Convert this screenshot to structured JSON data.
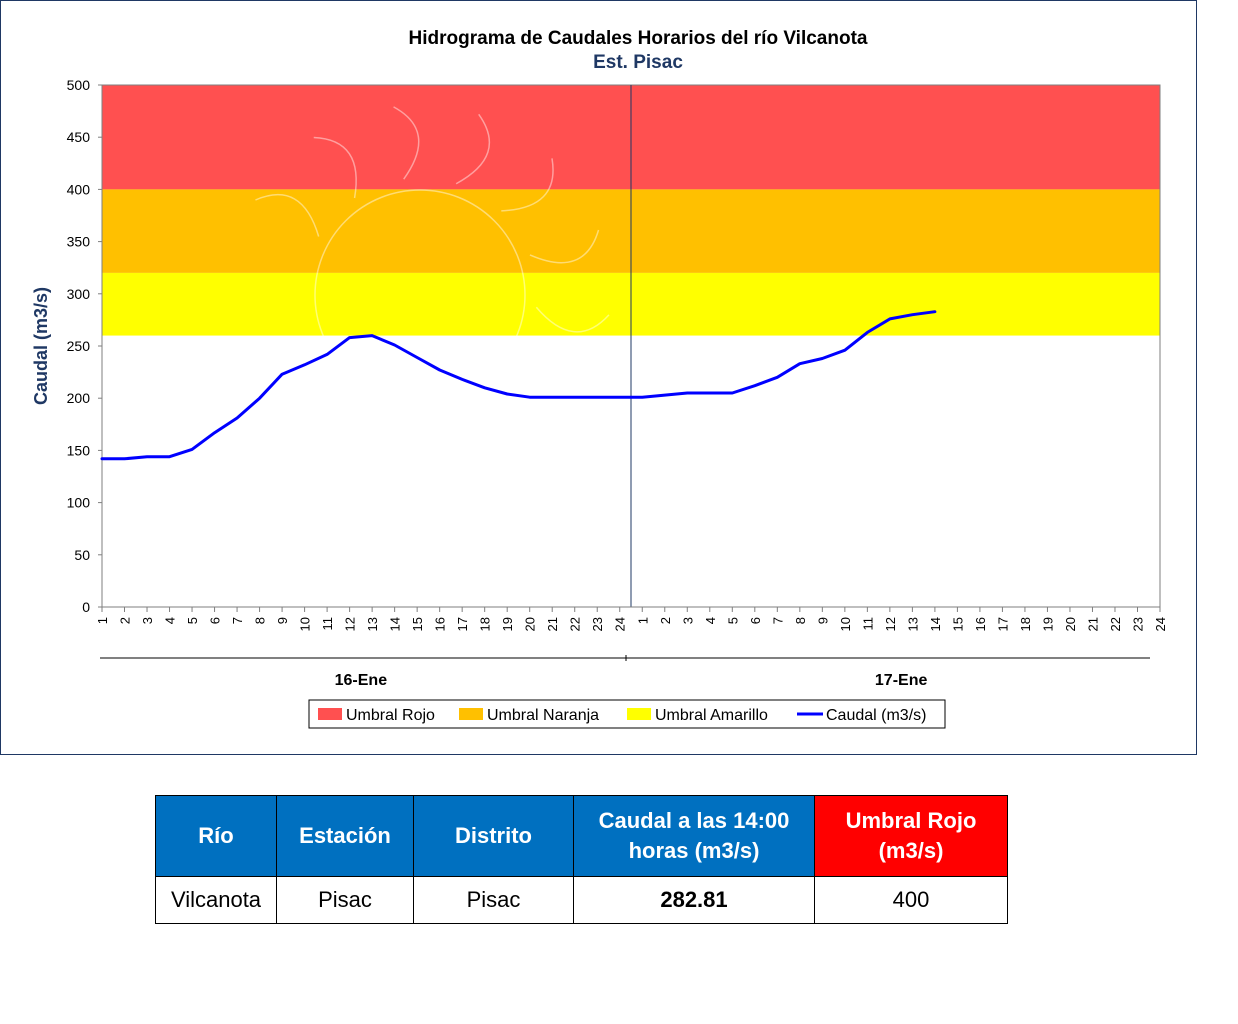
{
  "chart_data": {
    "type": "line",
    "title": "Hidrograma  de Caudales Horarios  del río Vilcanota",
    "subtitle": "Est. Pisac",
    "ylabel": "Caudal (m3/s)",
    "xlabel": "",
    "ylim": [
      0,
      500
    ],
    "yticks": [
      0,
      50,
      100,
      150,
      200,
      250,
      300,
      350,
      400,
      450,
      500
    ],
    "day_groups": [
      {
        "label": "16-Ene",
        "hours": [
          "1",
          "2",
          "3",
          "4",
          "5",
          "6",
          "7",
          "8",
          "9",
          "10",
          "11",
          "12",
          "13",
          "14",
          "15",
          "16",
          "17",
          "18",
          "19",
          "20",
          "21",
          "22",
          "23",
          "24"
        ]
      },
      {
        "label": "17-Ene",
        "hours": [
          "1",
          "2",
          "3",
          "4",
          "5",
          "6",
          "7",
          "8",
          "9",
          "10",
          "11",
          "12",
          "13",
          "14",
          "15",
          "16",
          "17",
          "18",
          "19",
          "20",
          "21",
          "22",
          "23",
          "24"
        ]
      }
    ],
    "threshold_bands": [
      {
        "name": "Umbral Rojo",
        "from": 400,
        "to": 500,
        "color": "#ff5050"
      },
      {
        "name": "Umbral Naranja",
        "from": 320,
        "to": 400,
        "color": "#ffc000"
      },
      {
        "name": "Umbral Amarillo",
        "from": 260,
        "to": 320,
        "color": "#ffff00"
      }
    ],
    "series": [
      {
        "name": "Caudal (m3/s)",
        "color": "#0000ff",
        "values": [
          142,
          142,
          144,
          144,
          151,
          167,
          181,
          200,
          223,
          232,
          242,
          258,
          260,
          251,
          239,
          227,
          218,
          210,
          204,
          201,
          201,
          201,
          201,
          201,
          201,
          203,
          205,
          205,
          205,
          212,
          220,
          233,
          238,
          246,
          263,
          276,
          280,
          282.81
        ]
      }
    ],
    "legend": {
      "position": "bottom",
      "entries": [
        "Umbral Rojo",
        "Umbral Naranja",
        "Umbral Amarillo",
        "Caudal (m3/s)"
      ]
    }
  },
  "table": {
    "headers": [
      {
        "label": "Río",
        "color": "#0070c0"
      },
      {
        "label": "Estación",
        "color": "#0070c0"
      },
      {
        "label": "Distrito",
        "color": "#0070c0"
      },
      {
        "label": "Caudal a las 14:00",
        "label2": "horas (m3/s)",
        "color": "#0070c0"
      },
      {
        "label": "Umbral Rojo",
        "label2": "(m3/s)",
        "color": "#ff0000"
      }
    ],
    "row": [
      "Vilcanota",
      "Pisac",
      "Pisac",
      "282.81",
      "400"
    ]
  }
}
